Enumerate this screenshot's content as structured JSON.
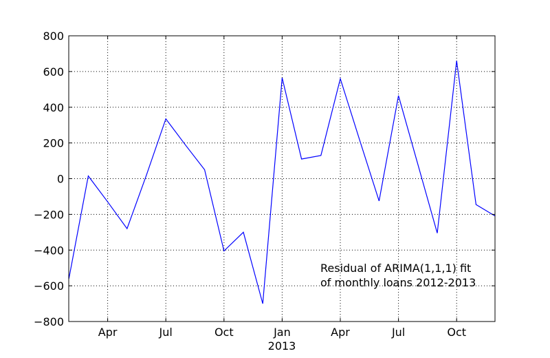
{
  "chart_data": {
    "type": "line",
    "x": [
      "2012-01",
      "2012-02",
      "2012-03",
      "2012-04",
      "2012-05",
      "2012-06",
      "2012-07",
      "2012-08",
      "2012-09",
      "2012-10",
      "2012-11",
      "2012-12",
      "2013-01",
      "2013-02",
      "2013-03",
      "2013-04",
      "2013-05",
      "2013-06",
      "2013-07",
      "2013-08",
      "2013-09",
      "2013-10",
      "2013-11",
      "2013-12"
    ],
    "series": [
      {
        "values": [
          -560,
          15,
          -130,
          -280,
          20,
          335,
          190,
          50,
          -405,
          -300,
          -700,
          565,
          110,
          130,
          560,
          215,
          -125,
          465,
          80,
          -305,
          660,
          -145,
          -210,
          null
        ],
        "color": "#0000ff"
      }
    ],
    "title": "",
    "xlabel": "",
    "ylabel": "",
    "ylim": [
      -800,
      800
    ],
    "yticks": [
      "800",
      "600",
      "400",
      "200",
      "0",
      "−200",
      "−400",
      "−600",
      "−800"
    ],
    "xticks": [
      "Apr",
      "Jul",
      "Oct",
      "Jan",
      "Apr",
      "Jul",
      "Oct"
    ],
    "xticks_minor_label": "2013",
    "grid": "dotted",
    "annotation": [
      "Residual of ARIMA(1,1,1) fit",
      "of monthly loans 2012-2013"
    ]
  }
}
